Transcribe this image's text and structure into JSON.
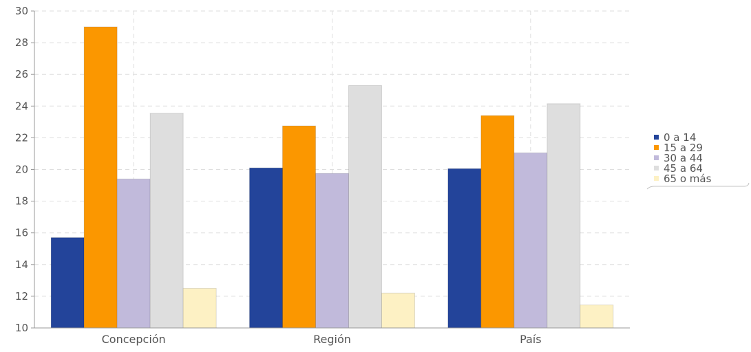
{
  "chart_data": {
    "type": "bar",
    "title": "",
    "xlabel": "",
    "ylabel": "",
    "categories": [
      "Concepción",
      "Región",
      "País"
    ],
    "ylim": [
      10,
      30
    ],
    "yticks": [
      10,
      12,
      14,
      16,
      18,
      20,
      22,
      24,
      26,
      28,
      30
    ],
    "grid": true,
    "legend_position": "right",
    "series": [
      {
        "name": "0 a 14",
        "color": "#23449a",
        "values": [
          15.7,
          20.1,
          20.05
        ]
      },
      {
        "name": "15 a 29",
        "color": "#fb9700",
        "values": [
          29.0,
          22.75,
          23.4
        ]
      },
      {
        "name": "30 a 44",
        "color": "#c1badb",
        "values": [
          19.4,
          19.75,
          21.05
        ]
      },
      {
        "name": "45 a 64",
        "color": "#dedede",
        "values": [
          23.55,
          25.3,
          24.15
        ]
      },
      {
        "name": "65 o más",
        "color": "#fdf1c4",
        "values": [
          12.5,
          12.2,
          11.45
        ]
      }
    ]
  }
}
